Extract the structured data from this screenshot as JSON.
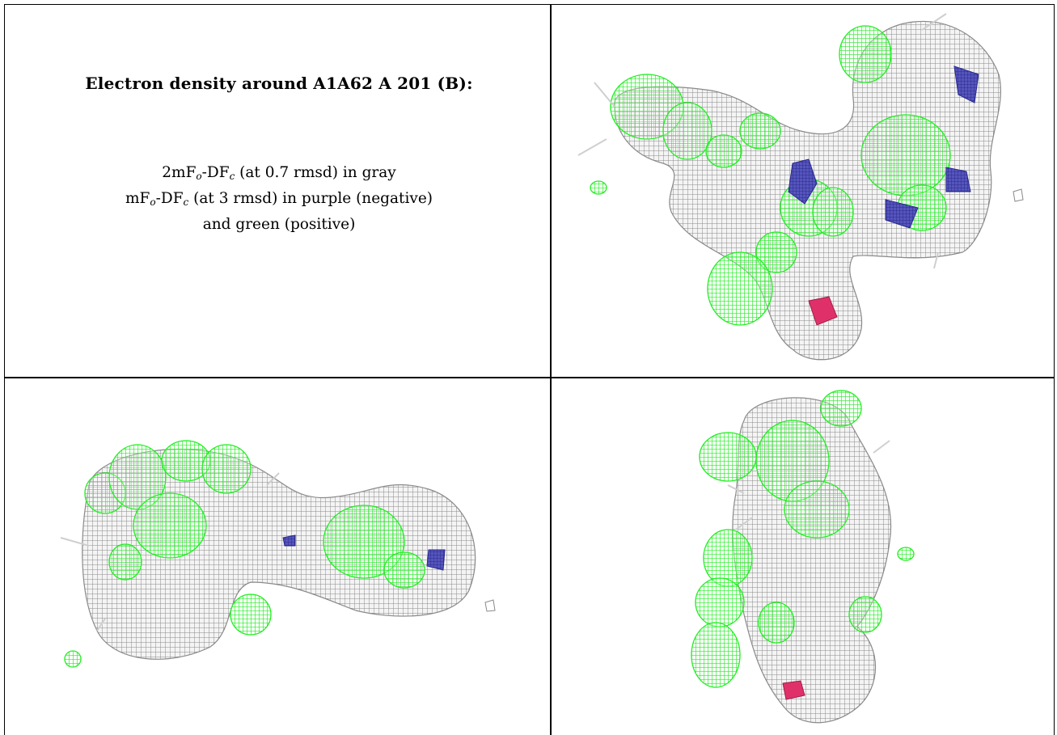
{
  "title": "Electron density around A1A62 A 201 (B):",
  "legend": {
    "line1_a": "2mF",
    "line1_sub1": "o",
    "line1_b": "-DF",
    "line1_sub2": "c",
    "line1_c": " (at 0.7 rmsd) in gray",
    "line2_a": "mF",
    "line2_sub1": "o",
    "line2_b": "-DF",
    "line2_sub2": "c",
    "line2_c": " (at 3 rmsd) in purple (negative)",
    "line3": "and green (positive)"
  },
  "colors": {
    "density_2fofc": "#8a8a8a",
    "fofc_positive": "#22ee22",
    "fofc_negative": "#3c3ca8",
    "oxygen": "#e0306a"
  },
  "panels": [
    "view-top-right",
    "view-bottom-left",
    "view-bottom-right"
  ]
}
